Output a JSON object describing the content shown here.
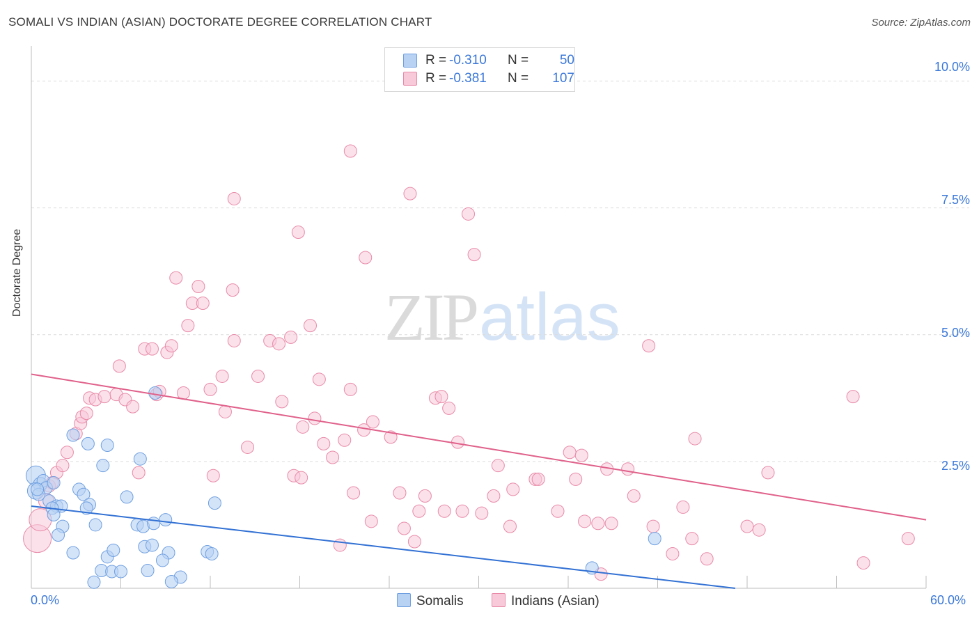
{
  "header": {
    "title": "SOMALI VS INDIAN (ASIAN) DOCTORATE DEGREE CORRELATION CHART",
    "source": "Source: ZipAtlas.com"
  },
  "watermark": {
    "zip": "ZIP",
    "atlas": "atlas"
  },
  "legend_top": {
    "row1": {
      "r_label": "R =",
      "r_value": "-0.310",
      "n_label": "N =",
      "n_value": "50"
    },
    "row2": {
      "r_label": "R =",
      "r_value": "-0.381",
      "n_label": "N =",
      "n_value": "107"
    }
  },
  "legend_bottom": {
    "somalis": "Somalis",
    "indians": "Indians (Asian)"
  },
  "colors": {
    "somali_fill": "#b8d2f4",
    "somali_stroke": "#6f9fe0",
    "somali_line": "#3271d4",
    "indian_fill": "#f8c9d8",
    "indian_stroke": "#e88aa8",
    "indian_line": "#e0608a",
    "axis_text": "#3b78d8"
  },
  "chart_data": {
    "type": "scatter",
    "title": "SOMALI VS INDIAN (ASIAN) DOCTORATE DEGREE CORRELATION CHART",
    "xlabel": "",
    "ylabel": "Doctorate Degree",
    "xlim": [
      0,
      60
    ],
    "ylim": [
      0,
      10.5
    ],
    "x_tick_labels": [
      "0.0%",
      "60.0%"
    ],
    "y_ticks": [
      2.5,
      5.0,
      7.5,
      10.0
    ],
    "y_tick_labels": [
      "2.5%",
      "5.0%",
      "7.5%",
      "10.0%"
    ],
    "grid": true,
    "series": [
      {
        "name": "Somalis",
        "r": -0.31,
        "n": 50,
        "trend": {
          "x": [
            0,
            47.2
          ],
          "y": [
            1.62,
            0.0
          ]
        },
        "points": [
          [
            0.3,
            2.22,
            14
          ],
          [
            0.6,
            2.05,
            10
          ],
          [
            0.3,
            1.92,
            12
          ],
          [
            0.8,
            2.12,
            9
          ],
          [
            1.0,
            1.98,
            9
          ],
          [
            0.5,
            1.85,
            9
          ],
          [
            1.2,
            1.72,
            9
          ],
          [
            1.5,
            2.08,
            9
          ],
          [
            1.7,
            1.62,
            9
          ],
          [
            2.0,
            1.62,
            9
          ],
          [
            1.4,
            1.58,
            9
          ],
          [
            3.2,
            1.95,
            9
          ],
          [
            3.5,
            1.85,
            9
          ],
          [
            3.9,
            1.65,
            9
          ],
          [
            3.7,
            1.58,
            9
          ],
          [
            1.5,
            1.45,
            9
          ],
          [
            2.1,
            1.22,
            9
          ],
          [
            1.8,
            1.05,
            9
          ],
          [
            4.3,
            1.25,
            9
          ],
          [
            2.8,
            3.02,
            9
          ],
          [
            3.8,
            2.85,
            9
          ],
          [
            5.1,
            2.82,
            9
          ],
          [
            4.8,
            2.42,
            9
          ],
          [
            7.3,
            2.55,
            9
          ],
          [
            6.4,
            1.8,
            9
          ],
          [
            8.3,
            3.85,
            9
          ],
          [
            7.1,
            1.25,
            9
          ],
          [
            7.5,
            1.22,
            9
          ],
          [
            8.2,
            1.28,
            9
          ],
          [
            9.0,
            1.35,
            9
          ],
          [
            12.3,
            1.68,
            9
          ],
          [
            2.8,
            0.7,
            9
          ],
          [
            5.1,
            0.62,
            9
          ],
          [
            5.5,
            0.75,
            9
          ],
          [
            7.6,
            0.82,
            9
          ],
          [
            8.1,
            0.85,
            9
          ],
          [
            9.2,
            0.7,
            9
          ],
          [
            8.8,
            0.55,
            9
          ],
          [
            11.8,
            0.72,
            9
          ],
          [
            12.1,
            0.68,
            9
          ],
          [
            4.7,
            0.35,
            9
          ],
          [
            5.4,
            0.33,
            9
          ],
          [
            6.0,
            0.33,
            9
          ],
          [
            7.8,
            0.35,
            9
          ],
          [
            10.0,
            0.22,
            9
          ],
          [
            4.2,
            0.12,
            9
          ],
          [
            9.4,
            0.13,
            9
          ],
          [
            37.6,
            0.4,
            9
          ],
          [
            41.8,
            0.98,
            9
          ],
          [
            0.4,
            1.95,
            9
          ]
        ]
      },
      {
        "name": "Indians (Asian)",
        "r": -0.381,
        "n": 107,
        "trend": {
          "x": [
            0,
            60
          ],
          "y": [
            4.22,
            1.35
          ]
        },
        "points": [
          [
            0.4,
            0.98,
            20
          ],
          [
            0.6,
            1.35,
            16
          ],
          [
            1.0,
            1.72,
            11
          ],
          [
            1.7,
            2.28,
            9
          ],
          [
            1.2,
            2.02,
            9
          ],
          [
            1.4,
            2.08,
            9
          ],
          [
            2.1,
            2.42,
            9
          ],
          [
            2.4,
            2.68,
            9
          ],
          [
            3.0,
            3.05,
            9
          ],
          [
            3.3,
            3.25,
            9
          ],
          [
            3.4,
            3.38,
            9
          ],
          [
            3.7,
            3.45,
            9
          ],
          [
            3.9,
            3.75,
            9
          ],
          [
            4.3,
            3.72,
            9
          ],
          [
            4.9,
            3.78,
            9
          ],
          [
            5.7,
            3.82,
            9
          ],
          [
            6.3,
            3.72,
            9
          ],
          [
            6.8,
            3.58,
            9
          ],
          [
            5.9,
            4.38,
            9
          ],
          [
            7.6,
            4.72,
            9
          ],
          [
            8.1,
            4.72,
            9
          ],
          [
            9.1,
            4.65,
            9
          ],
          [
            9.4,
            4.78,
            9
          ],
          [
            8.4,
            3.82,
            9
          ],
          [
            8.6,
            3.88,
            9
          ],
          [
            10.2,
            3.85,
            9
          ],
          [
            9.7,
            6.12,
            9
          ],
          [
            10.5,
            5.18,
            9
          ],
          [
            10.8,
            5.62,
            9
          ],
          [
            11.5,
            5.62,
            9
          ],
          [
            11.2,
            5.95,
            9
          ],
          [
            13.5,
            5.88,
            9
          ],
          [
            13.6,
            4.88,
            9
          ],
          [
            12.8,
            4.18,
            9
          ],
          [
            12.0,
            3.92,
            9
          ],
          [
            13.0,
            3.48,
            9
          ],
          [
            15.2,
            4.18,
            9
          ],
          [
            16.0,
            4.88,
            9
          ],
          [
            16.6,
            4.82,
            9
          ],
          [
            17.4,
            4.95,
            9
          ],
          [
            16.8,
            3.68,
            9
          ],
          [
            14.5,
            2.78,
            9
          ],
          [
            12.2,
            2.22,
            9
          ],
          [
            7.2,
            2.28,
            9
          ],
          [
            13.6,
            7.68,
            9
          ],
          [
            17.9,
            7.02,
            9
          ],
          [
            18.2,
            3.18,
            9
          ],
          [
            18.7,
            5.18,
            9
          ],
          [
            19.0,
            3.35,
            9
          ],
          [
            19.3,
            4.12,
            9
          ],
          [
            19.6,
            2.85,
            9
          ],
          [
            20.2,
            2.58,
            9
          ],
          [
            21.0,
            2.92,
            9
          ],
          [
            21.4,
            3.92,
            9
          ],
          [
            22.9,
            3.28,
            9
          ],
          [
            22.3,
            3.12,
            9
          ],
          [
            24.1,
            2.98,
            9
          ],
          [
            17.6,
            2.22,
            9
          ],
          [
            18.1,
            2.18,
            9
          ],
          [
            20.7,
            0.85,
            9
          ],
          [
            21.6,
            1.88,
            9
          ],
          [
            22.8,
            1.32,
            9
          ],
          [
            24.7,
            1.88,
            9
          ],
          [
            25.0,
            1.18,
            9
          ],
          [
            25.7,
            0.92,
            9
          ],
          [
            26.0,
            1.52,
            9
          ],
          [
            26.4,
            1.82,
            9
          ],
          [
            27.1,
            3.75,
            9
          ],
          [
            27.5,
            3.78,
            9
          ],
          [
            28.0,
            3.55,
            9
          ],
          [
            27.7,
            1.52,
            9
          ],
          [
            28.6,
            2.88,
            9
          ],
          [
            28.9,
            1.52,
            9
          ],
          [
            30.2,
            1.48,
            9
          ],
          [
            31.0,
            1.82,
            9
          ],
          [
            31.3,
            2.42,
            9
          ],
          [
            32.1,
            1.22,
            9
          ],
          [
            32.3,
            1.95,
            9
          ],
          [
            33.8,
            2.15,
            9
          ],
          [
            34.0,
            2.15,
            9
          ],
          [
            35.3,
            1.52,
            9
          ],
          [
            36.1,
            2.68,
            9
          ],
          [
            36.9,
            2.62,
            9
          ],
          [
            37.1,
            1.32,
            9
          ],
          [
            36.5,
            2.15,
            9
          ],
          [
            38.0,
            1.28,
            9
          ],
          [
            38.6,
            2.35,
            9
          ],
          [
            38.9,
            1.28,
            9
          ],
          [
            40.0,
            2.35,
            9
          ],
          [
            40.4,
            1.82,
            9
          ],
          [
            41.7,
            1.22,
            9
          ],
          [
            43.7,
            1.6,
            9
          ],
          [
            43.0,
            0.68,
            9
          ],
          [
            44.5,
            2.95,
            9
          ],
          [
            44.3,
            0.98,
            9
          ],
          [
            45.3,
            0.58,
            9
          ],
          [
            48.0,
            1.22,
            9
          ],
          [
            48.8,
            1.15,
            9
          ],
          [
            49.4,
            2.28,
            9
          ],
          [
            55.1,
            3.78,
            9
          ],
          [
            55.8,
            0.5,
            9
          ],
          [
            58.8,
            0.98,
            9
          ],
          [
            38.2,
            0.28,
            9
          ],
          [
            41.4,
            4.78,
            9
          ],
          [
            21.4,
            8.62,
            9
          ],
          [
            25.4,
            7.78,
            9
          ],
          [
            29.3,
            7.38,
            9
          ],
          [
            29.7,
            6.58,
            9
          ],
          [
            22.4,
            6.52,
            9
          ]
        ]
      }
    ]
  }
}
